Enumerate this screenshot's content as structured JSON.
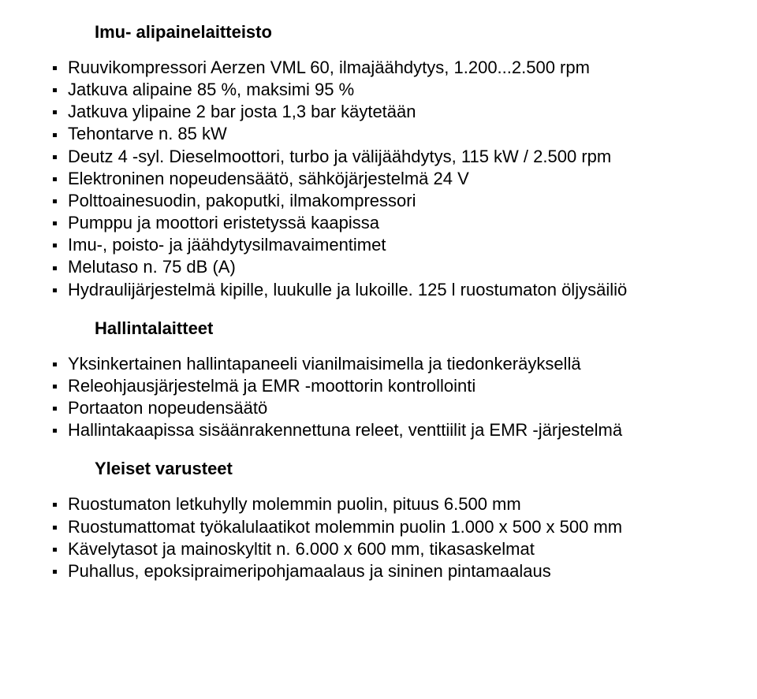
{
  "doc": {
    "text_color": "#000000",
    "background_color": "#ffffff",
    "font_family": "Arial, Helvetica, sans-serif",
    "title_fontsize": 22,
    "body_fontsize": 22,
    "title_fontweight": "bold",
    "bullet_style": "square",
    "bullet_color": "#000000"
  },
  "sections": {
    "s1": {
      "title": "Imu- alipainelaitteisto",
      "items": [
        "Ruuvikompressori Aerzen VML 60, ilmajäähdytys, 1.200...2.500 rpm",
        "Jatkuva alipaine 85 %, maksimi 95 %",
        "Jatkuva ylipaine 2 bar josta 1,3 bar käytetään",
        "Tehontarve n. 85 kW",
        "Deutz 4 -syl. Dieselmoottori, turbo ja välijäähdytys, 115 kW / 2.500 rpm",
        "Elektroninen nopeudensäätö, sähköjärjestelmä 24 V",
        "Polttoainesuodin, pakoputki, ilmakompressori",
        "Pumppu ja moottori eristetyssä kaapissa",
        "Imu-, poisto- ja jäähdytysilmavaimentimet",
        "Melutaso n. 75 dB (A)",
        "Hydraulijärjestelmä kipille, luukulle ja lukoille. 125 l ruostumaton öljysäiliö"
      ]
    },
    "s2": {
      "title": "Hallintalaitteet",
      "items": [
        "Yksinkertainen hallintapaneeli vianilmaisimella ja tiedonkeräyksellä",
        "Releohjausjärjestelmä ja EMR -moottorin kontrollointi",
        "Portaaton nopeudensäätö",
        "Hallintakaapissa sisäänrakennettuna releet, venttiilit ja EMR -järjestelmä"
      ]
    },
    "s3": {
      "title": "Yleiset varusteet",
      "items": [
        "Ruostumaton letkuhylly molemmin puolin, pituus 6.500 mm",
        "Ruostumattomat työkalulaatikot molemmin puolin 1.000 x 500 x 500 mm",
        "Kävelytasot ja mainoskyltit n. 6.000 x  600 mm, tikasaskelmat",
        "Puhallus, epoksipraimeripohjamaalaus ja sininen pintamaalaus"
      ]
    }
  }
}
